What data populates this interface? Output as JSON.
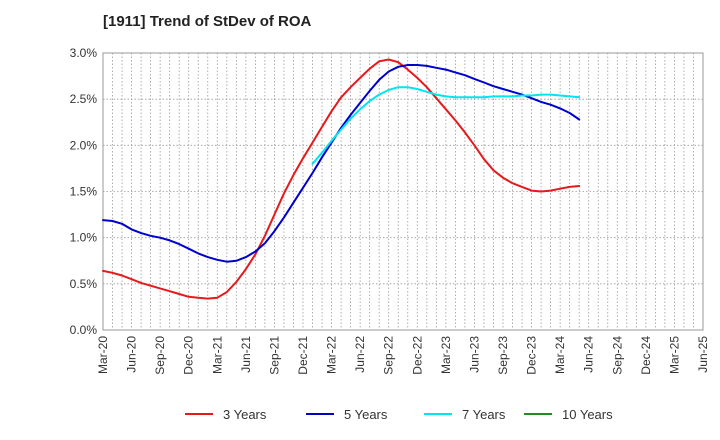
{
  "chart_data": {
    "type": "line",
    "title": "[1911]  Trend of StDev of ROA",
    "xlabel": "",
    "ylabel": "",
    "x_ticks": [
      "Mar-20",
      "Jun-20",
      "Sep-20",
      "Dec-20",
      "Mar-21",
      "Jun-21",
      "Sep-21",
      "Dec-21",
      "Mar-22",
      "Jun-22",
      "Sep-22",
      "Dec-22",
      "Mar-23",
      "Jun-23",
      "Sep-23",
      "Dec-23",
      "Mar-24",
      "Jun-24",
      "Sep-24",
      "Dec-24",
      "Mar-25",
      "Jun-25"
    ],
    "y_ticks": [
      "0.0%",
      "0.5%",
      "1.0%",
      "1.5%",
      "2.0%",
      "2.5%",
      "3.0%"
    ],
    "ylim": [
      0,
      3.0
    ],
    "grid": true,
    "legend_position": "bottom",
    "series": [
      {
        "name": "3 Years",
        "color": "#e41a1c",
        "values": [
          0.64,
          0.62,
          0.59,
          0.55,
          0.51,
          0.48,
          0.45,
          0.42,
          0.39,
          0.36,
          0.35,
          0.34,
          0.35,
          0.41,
          0.52,
          0.66,
          0.82,
          1.02,
          1.25,
          1.48,
          1.68,
          1.86,
          2.03,
          2.2,
          2.37,
          2.52,
          2.63,
          2.73,
          2.83,
          2.91,
          2.93,
          2.9,
          2.82,
          2.73,
          2.63,
          2.51,
          2.39,
          2.27,
          2.14,
          2.0,
          1.85,
          1.73,
          1.65,
          1.59,
          1.55,
          1.51,
          1.5,
          1.51,
          1.53,
          1.55,
          1.56
        ]
      },
      {
        "name": "5 Years",
        "color": "#0000cc",
        "values": [
          1.19,
          1.18,
          1.15,
          1.09,
          1.05,
          1.02,
          1.0,
          0.97,
          0.93,
          0.88,
          0.83,
          0.79,
          0.76,
          0.74,
          0.75,
          0.79,
          0.85,
          0.94,
          1.07,
          1.22,
          1.38,
          1.54,
          1.7,
          1.87,
          2.03,
          2.19,
          2.33,
          2.46,
          2.59,
          2.71,
          2.8,
          2.85,
          2.87,
          2.87,
          2.86,
          2.84,
          2.82,
          2.79,
          2.76,
          2.72,
          2.68,
          2.64,
          2.61,
          2.58,
          2.55,
          2.51,
          2.47,
          2.44,
          2.4,
          2.35,
          2.28
        ]
      },
      {
        "name": "7 Years",
        "color": "#00e5ee",
        "values": [
          null,
          null,
          null,
          null,
          null,
          null,
          null,
          null,
          null,
          null,
          null,
          null,
          null,
          null,
          null,
          null,
          null,
          null,
          null,
          null,
          null,
          null,
          1.8,
          1.92,
          2.05,
          2.17,
          2.29,
          2.39,
          2.48,
          2.55,
          2.6,
          2.63,
          2.63,
          2.61,
          2.58,
          2.55,
          2.53,
          2.52,
          2.52,
          2.52,
          2.52,
          2.53,
          2.53,
          2.53,
          2.54,
          2.54,
          2.55,
          2.55,
          2.54,
          2.53,
          2.52
        ]
      },
      {
        "name": "10 Years",
        "color": "#228b22",
        "values": []
      }
    ]
  }
}
